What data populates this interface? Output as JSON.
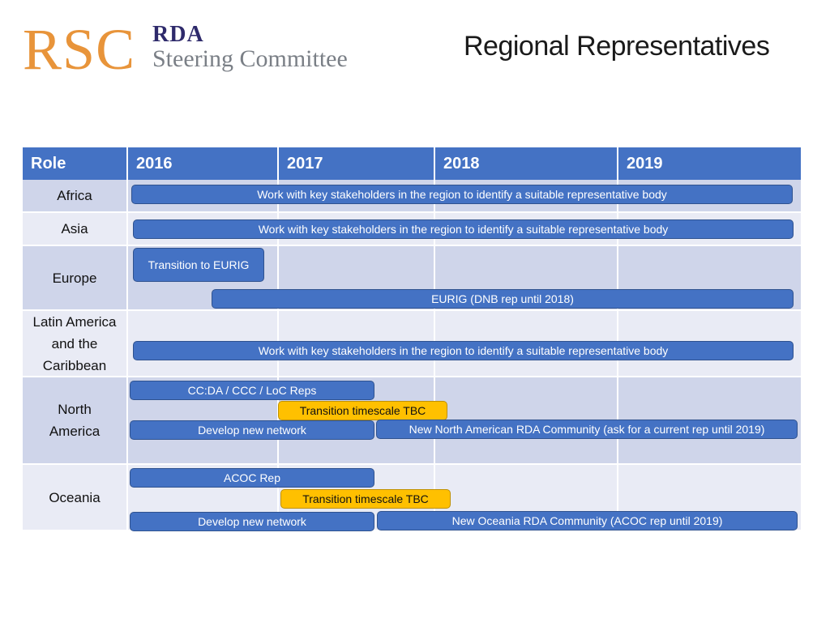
{
  "logo": {
    "rsc": "RSC",
    "rda": "RDA",
    "subtitle": "Steering Committee"
  },
  "title": "Regional Representatives",
  "colors": {
    "header": "#4472c4",
    "row_dark": "#cfd5ea",
    "row_light": "#e9ebf5",
    "bar_blue": "#4472c4",
    "bar_yellow": "#ffc000",
    "logo_orange": "#e8943a"
  },
  "table": {
    "headers": [
      "Role",
      "2016",
      "2017",
      "2018",
      "2019"
    ],
    "rows": [
      {
        "role": "Africa",
        "bars": [
          {
            "text": "Work with key stakeholders in the  region to identify  a suitable representative body",
            "color": "blue"
          }
        ]
      },
      {
        "role": "Asia",
        "bars": [
          {
            "text": "Work with key stakeholders in the  region to identify  a suitable representative body",
            "color": "blue"
          }
        ]
      },
      {
        "role": "Europe",
        "bars": [
          {
            "text": "Transition to EURIG",
            "color": "blue"
          },
          {
            "text": "EURIG (DNB rep until 2018)",
            "color": "blue"
          }
        ]
      },
      {
        "role_lines": [
          "Latin America",
          "and the",
          "Caribbean"
        ],
        "bars": [
          {
            "text": "Work with key stakeholders in the  region to identify  a suitable representative body",
            "color": "blue"
          }
        ]
      },
      {
        "role_lines": [
          "North",
          "America"
        ],
        "bars": [
          {
            "text": "CC:DA / CCC / LoC  Reps",
            "color": "blue"
          },
          {
            "text": "Transition timescale TBC",
            "color": "yellow"
          },
          {
            "text": "Develop new network",
            "color": "blue"
          },
          {
            "text": "New North American RDA Community  (ask for a current rep until 2019)",
            "color": "blue"
          }
        ]
      },
      {
        "role": "Oceania",
        "bars": [
          {
            "text": "ACOC Rep",
            "color": "blue"
          },
          {
            "text": "Transition timescale TBC",
            "color": "yellow"
          },
          {
            "text": "Develop new network",
            "color": "blue"
          },
          {
            "text": "New Oceania RDA Community (ACOC rep until 2019)",
            "color": "blue"
          }
        ]
      }
    ]
  }
}
